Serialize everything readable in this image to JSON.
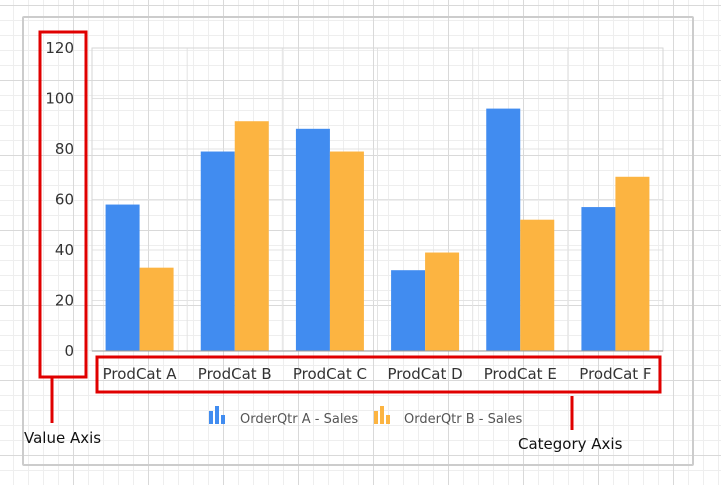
{
  "chart_data": {
    "type": "bar",
    "categories": [
      "ProdCat A",
      "ProdCat B",
      "ProdCat C",
      "ProdCat D",
      "ProdCat E",
      "ProdCat F"
    ],
    "series": [
      {
        "name": "OrderQtr A - Sales",
        "values": [
          58,
          79,
          88,
          32,
          96,
          57
        ],
        "color": "#418cf0"
      },
      {
        "name": "OrderQtr B - Sales",
        "values": [
          33,
          91,
          79,
          39,
          52,
          69
        ],
        "color": "#fcb441"
      }
    ],
    "yticks": [
      0,
      20,
      40,
      60,
      80,
      100,
      120
    ],
    "ylim": [
      0,
      120
    ],
    "grid": true,
    "legend": "bottom-center"
  },
  "annotations": {
    "value_axis": "Value Axis",
    "category_axis": "Category Axis",
    "highlight_color": "#e00000"
  }
}
